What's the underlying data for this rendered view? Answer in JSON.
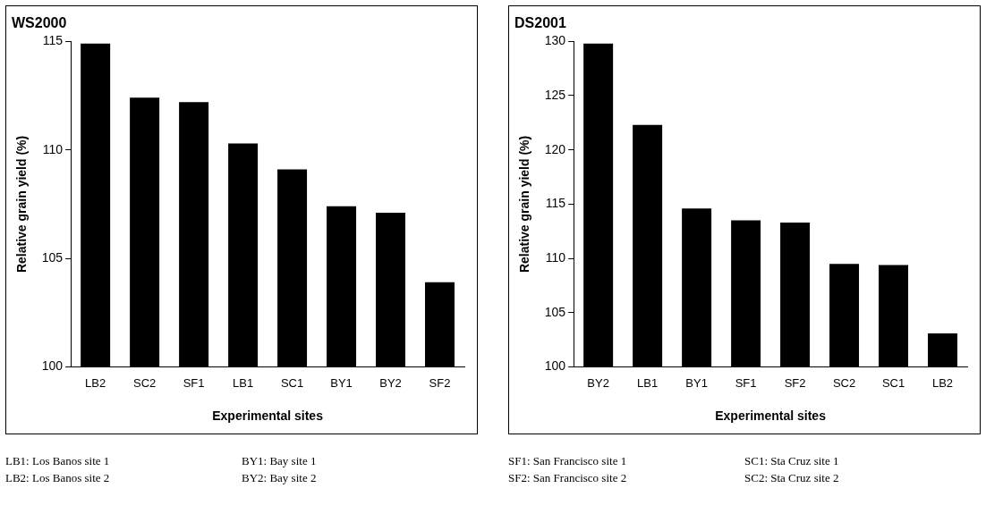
{
  "chart_data": [
    {
      "type": "bar",
      "title": "WS2000",
      "xlabel": "Experimental sites",
      "ylabel": "Relative grain yield (%)",
      "categories": [
        "LB2",
        "SC2",
        "SF1",
        "LB1",
        "SC1",
        "BY1",
        "BY2",
        "SF2"
      ],
      "values": [
        114.9,
        112.4,
        112.2,
        110.3,
        109.1,
        107.4,
        107.1,
        103.9
      ],
      "color": "#000000",
      "ylim": [
        100,
        115
      ],
      "yticks": [
        100,
        105,
        110,
        115
      ],
      "grid": false,
      "legend": false,
      "annotations": [
        "LB1: Los Banos site 1",
        "LB2: Los Banos site 2",
        "BY1: Bay site 1",
        "BY2: Bay site 2"
      ]
    },
    {
      "type": "bar",
      "title": "DS2001",
      "xlabel": "Experimental sites",
      "ylabel": "Relative grain yield (%)",
      "categories": [
        "BY2",
        "LB1",
        "BY1",
        "SF1",
        "SF2",
        "SC2",
        "SC1",
        "LB2"
      ],
      "values": [
        129.8,
        122.3,
        114.6,
        113.5,
        113.3,
        109.5,
        109.4,
        103.1
      ],
      "color": "#000000",
      "ylim": [
        100,
        130
      ],
      "yticks": [
        100,
        105,
        110,
        115,
        120,
        125,
        130
      ],
      "grid": false,
      "legend": false,
      "annotations": [
        "SF1: San Francisco site 1",
        "SF2: San Francisco site 2",
        "SC1: Sta Cruz site 1",
        "SC2: Sta Cruz site 2"
      ]
    }
  ]
}
